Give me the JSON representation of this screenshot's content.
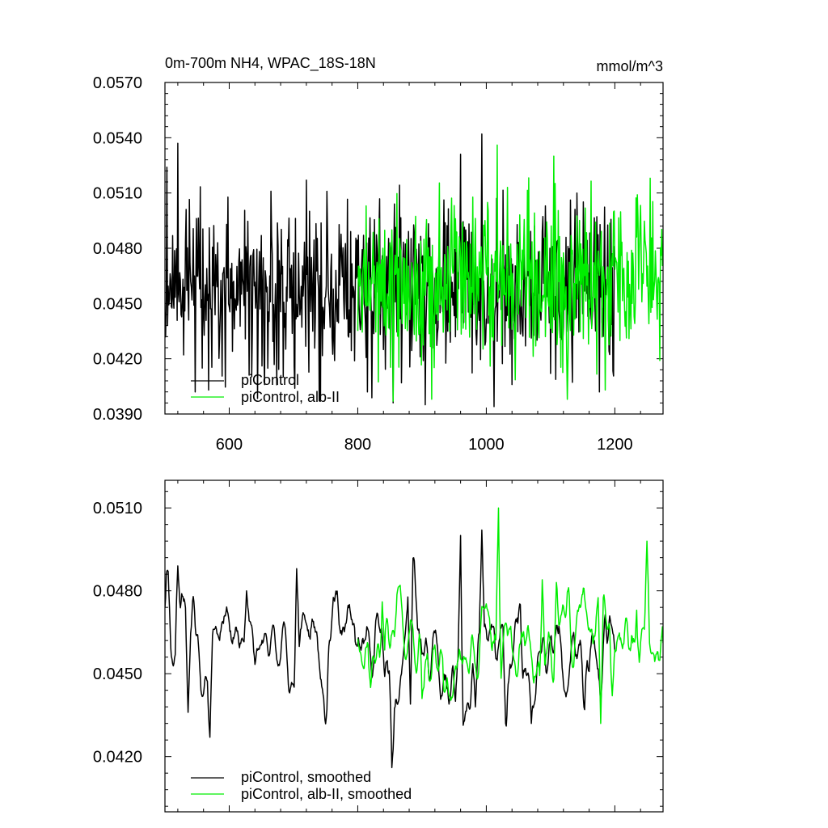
{
  "chart_data": [
    {
      "type": "line",
      "title": "0m-700m NH4, WPAC_18S-18N",
      "units": "mmol/m^3",
      "xlim": [
        500,
        1275
      ],
      "ylim": [
        0.039,
        0.057
      ],
      "x_ticks": [
        600,
        800,
        1000,
        1200
      ],
      "x_tick_labels": [
        "600",
        "800",
        "1000",
        "1200"
      ],
      "y_ticks": [
        0.039,
        0.042,
        0.045,
        0.048,
        0.051,
        0.054,
        0.057
      ],
      "y_tick_labels": [
        "0.0390",
        "0.0420",
        "0.0450",
        "0.0480",
        "0.0510",
        "0.0540",
        "0.0570"
      ],
      "grid": false,
      "legend_placement": "bottom-left",
      "series": [
        {
          "name": "piControl",
          "color": "#000000",
          "x_range": [
            500,
            1200
          ],
          "mean": 0.0458,
          "noise_sd": 0.0022,
          "anchors": [
            [
              503,
              0.0524
            ],
            [
              520,
              0.0537
            ],
            [
              547,
              0.0402
            ],
            [
              568,
              0.0403
            ],
            [
              655,
              0.0406
            ],
            [
              720,
              0.0517
            ],
            [
              742,
              0.0398
            ],
            [
              815,
              0.0402
            ],
            [
              855,
              0.0396
            ],
            [
              905,
              0.0395
            ],
            [
              960,
              0.0531
            ],
            [
              993,
              0.0542
            ],
            [
              1012,
              0.0394
            ],
            [
              1040,
              0.0406
            ],
            [
              1100,
              0.0412
            ],
            [
              1176,
              0.0402
            ]
          ]
        },
        {
          "name": "piControl, alb-II",
          "color": "#00ee00",
          "x_range": [
            800,
            1275
          ],
          "mean": 0.0462,
          "noise_sd": 0.0022,
          "anchors": [
            [
              818,
              0.0455
            ],
            [
              855,
              0.0397
            ],
            [
              915,
              0.0398
            ],
            [
              1017,
              0.0536
            ],
            [
              1105,
              0.053
            ],
            [
              1185,
              0.0403
            ],
            [
              1255,
              0.0518
            ],
            [
              1270,
              0.0419
            ]
          ]
        }
      ]
    },
    {
      "type": "line",
      "title": "",
      "xlim": [
        500,
        1275
      ],
      "ylim": [
        0.04,
        0.052
      ],
      "x_ticks": [
        600,
        800,
        1000,
        1200
      ],
      "x_tick_labels": [],
      "y_ticks": [
        0.042,
        0.045,
        0.048,
        0.051
      ],
      "y_tick_labels": [
        "0.0420",
        "0.0450",
        "0.0480",
        "0.0510"
      ],
      "grid": false,
      "legend_placement": "bottom-left",
      "series": [
        {
          "name": "piControl, smoothed",
          "color": "#000000",
          "x_range": [
            500,
            1200
          ],
          "mean": 0.0457,
          "noise_sd": 0.0011,
          "anchors": [
            [
              502,
              0.0482
            ],
            [
              505,
              0.0487
            ],
            [
              520,
              0.0489
            ],
            [
              536,
              0.0436
            ],
            [
              570,
              0.0427
            ],
            [
              627,
              0.048
            ],
            [
              705,
              0.0488
            ],
            [
              752,
              0.0437
            ],
            [
              842,
              0.0449
            ],
            [
              853,
              0.0416
            ],
            [
              882,
              0.0439
            ],
            [
              952,
              0.044
            ],
            [
              960,
              0.05
            ],
            [
              983,
              0.0438
            ],
            [
              993,
              0.0502
            ],
            [
              1030,
              0.0432
            ],
            [
              1053,
              0.0475
            ],
            [
              1070,
              0.0432
            ],
            [
              1125,
              0.0443
            ],
            [
              1153,
              0.0437
            ],
            [
              1178,
              0.0439
            ],
            [
              1188,
              0.0461
            ],
            [
              1198,
              0.0464
            ]
          ]
        },
        {
          "name": "piControl, alb-II, smoothed",
          "color": "#00ee00",
          "x_range": [
            800,
            1275
          ],
          "mean": 0.046,
          "noise_sd": 0.0011,
          "anchors": [
            [
              820,
              0.0445
            ],
            [
              838,
              0.0476
            ],
            [
              866,
              0.0482
            ],
            [
              900,
              0.0441
            ],
            [
              1005,
              0.047
            ],
            [
              1019,
              0.051
            ],
            [
              1087,
              0.0484
            ],
            [
              1109,
              0.0483
            ],
            [
              1178,
              0.0432
            ],
            [
              1196,
              0.0442
            ],
            [
              1234,
              0.0473
            ],
            [
              1250,
              0.0498
            ],
            [
              1268,
              0.0455
            ],
            [
              1274,
              0.0467
            ]
          ]
        }
      ]
    }
  ]
}
